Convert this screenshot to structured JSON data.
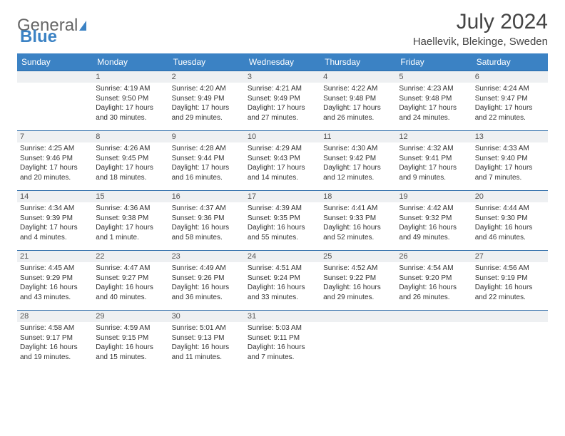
{
  "brand": {
    "part1": "General",
    "part2": "Blue"
  },
  "title": "July 2024",
  "location": "Haellevik, Blekinge, Sweden",
  "colors": {
    "header_bg": "#3b82c4",
    "header_text": "#ffffff",
    "row_border": "#2a6aa8",
    "daynum_bg": "#eef0f2",
    "text": "#333333",
    "page_bg": "#ffffff"
  },
  "weekdays": [
    "Sunday",
    "Monday",
    "Tuesday",
    "Wednesday",
    "Thursday",
    "Friday",
    "Saturday"
  ],
  "leading_blanks": 1,
  "days": [
    {
      "n": 1,
      "sunrise": "4:19 AM",
      "sunset": "9:50 PM",
      "daylight": "17 hours and 30 minutes."
    },
    {
      "n": 2,
      "sunrise": "4:20 AM",
      "sunset": "9:49 PM",
      "daylight": "17 hours and 29 minutes."
    },
    {
      "n": 3,
      "sunrise": "4:21 AM",
      "sunset": "9:49 PM",
      "daylight": "17 hours and 27 minutes."
    },
    {
      "n": 4,
      "sunrise": "4:22 AM",
      "sunset": "9:48 PM",
      "daylight": "17 hours and 26 minutes."
    },
    {
      "n": 5,
      "sunrise": "4:23 AM",
      "sunset": "9:48 PM",
      "daylight": "17 hours and 24 minutes."
    },
    {
      "n": 6,
      "sunrise": "4:24 AM",
      "sunset": "9:47 PM",
      "daylight": "17 hours and 22 minutes."
    },
    {
      "n": 7,
      "sunrise": "4:25 AM",
      "sunset": "9:46 PM",
      "daylight": "17 hours and 20 minutes."
    },
    {
      "n": 8,
      "sunrise": "4:26 AM",
      "sunset": "9:45 PM",
      "daylight": "17 hours and 18 minutes."
    },
    {
      "n": 9,
      "sunrise": "4:28 AM",
      "sunset": "9:44 PM",
      "daylight": "17 hours and 16 minutes."
    },
    {
      "n": 10,
      "sunrise": "4:29 AM",
      "sunset": "9:43 PM",
      "daylight": "17 hours and 14 minutes."
    },
    {
      "n": 11,
      "sunrise": "4:30 AM",
      "sunset": "9:42 PM",
      "daylight": "17 hours and 12 minutes."
    },
    {
      "n": 12,
      "sunrise": "4:32 AM",
      "sunset": "9:41 PM",
      "daylight": "17 hours and 9 minutes."
    },
    {
      "n": 13,
      "sunrise": "4:33 AM",
      "sunset": "9:40 PM",
      "daylight": "17 hours and 7 minutes."
    },
    {
      "n": 14,
      "sunrise": "4:34 AM",
      "sunset": "9:39 PM",
      "daylight": "17 hours and 4 minutes."
    },
    {
      "n": 15,
      "sunrise": "4:36 AM",
      "sunset": "9:38 PM",
      "daylight": "17 hours and 1 minute."
    },
    {
      "n": 16,
      "sunrise": "4:37 AM",
      "sunset": "9:36 PM",
      "daylight": "16 hours and 58 minutes."
    },
    {
      "n": 17,
      "sunrise": "4:39 AM",
      "sunset": "9:35 PM",
      "daylight": "16 hours and 55 minutes."
    },
    {
      "n": 18,
      "sunrise": "4:41 AM",
      "sunset": "9:33 PM",
      "daylight": "16 hours and 52 minutes."
    },
    {
      "n": 19,
      "sunrise": "4:42 AM",
      "sunset": "9:32 PM",
      "daylight": "16 hours and 49 minutes."
    },
    {
      "n": 20,
      "sunrise": "4:44 AM",
      "sunset": "9:30 PM",
      "daylight": "16 hours and 46 minutes."
    },
    {
      "n": 21,
      "sunrise": "4:45 AM",
      "sunset": "9:29 PM",
      "daylight": "16 hours and 43 minutes."
    },
    {
      "n": 22,
      "sunrise": "4:47 AM",
      "sunset": "9:27 PM",
      "daylight": "16 hours and 40 minutes."
    },
    {
      "n": 23,
      "sunrise": "4:49 AM",
      "sunset": "9:26 PM",
      "daylight": "16 hours and 36 minutes."
    },
    {
      "n": 24,
      "sunrise": "4:51 AM",
      "sunset": "9:24 PM",
      "daylight": "16 hours and 33 minutes."
    },
    {
      "n": 25,
      "sunrise": "4:52 AM",
      "sunset": "9:22 PM",
      "daylight": "16 hours and 29 minutes."
    },
    {
      "n": 26,
      "sunrise": "4:54 AM",
      "sunset": "9:20 PM",
      "daylight": "16 hours and 26 minutes."
    },
    {
      "n": 27,
      "sunrise": "4:56 AM",
      "sunset": "9:19 PM",
      "daylight": "16 hours and 22 minutes."
    },
    {
      "n": 28,
      "sunrise": "4:58 AM",
      "sunset": "9:17 PM",
      "daylight": "16 hours and 19 minutes."
    },
    {
      "n": 29,
      "sunrise": "4:59 AM",
      "sunset": "9:15 PM",
      "daylight": "16 hours and 15 minutes."
    },
    {
      "n": 30,
      "sunrise": "5:01 AM",
      "sunset": "9:13 PM",
      "daylight": "16 hours and 11 minutes."
    },
    {
      "n": 31,
      "sunrise": "5:03 AM",
      "sunset": "9:11 PM",
      "daylight": "16 hours and 7 minutes."
    }
  ],
  "labels": {
    "sunrise": "Sunrise:",
    "sunset": "Sunset:",
    "daylight": "Daylight:"
  }
}
